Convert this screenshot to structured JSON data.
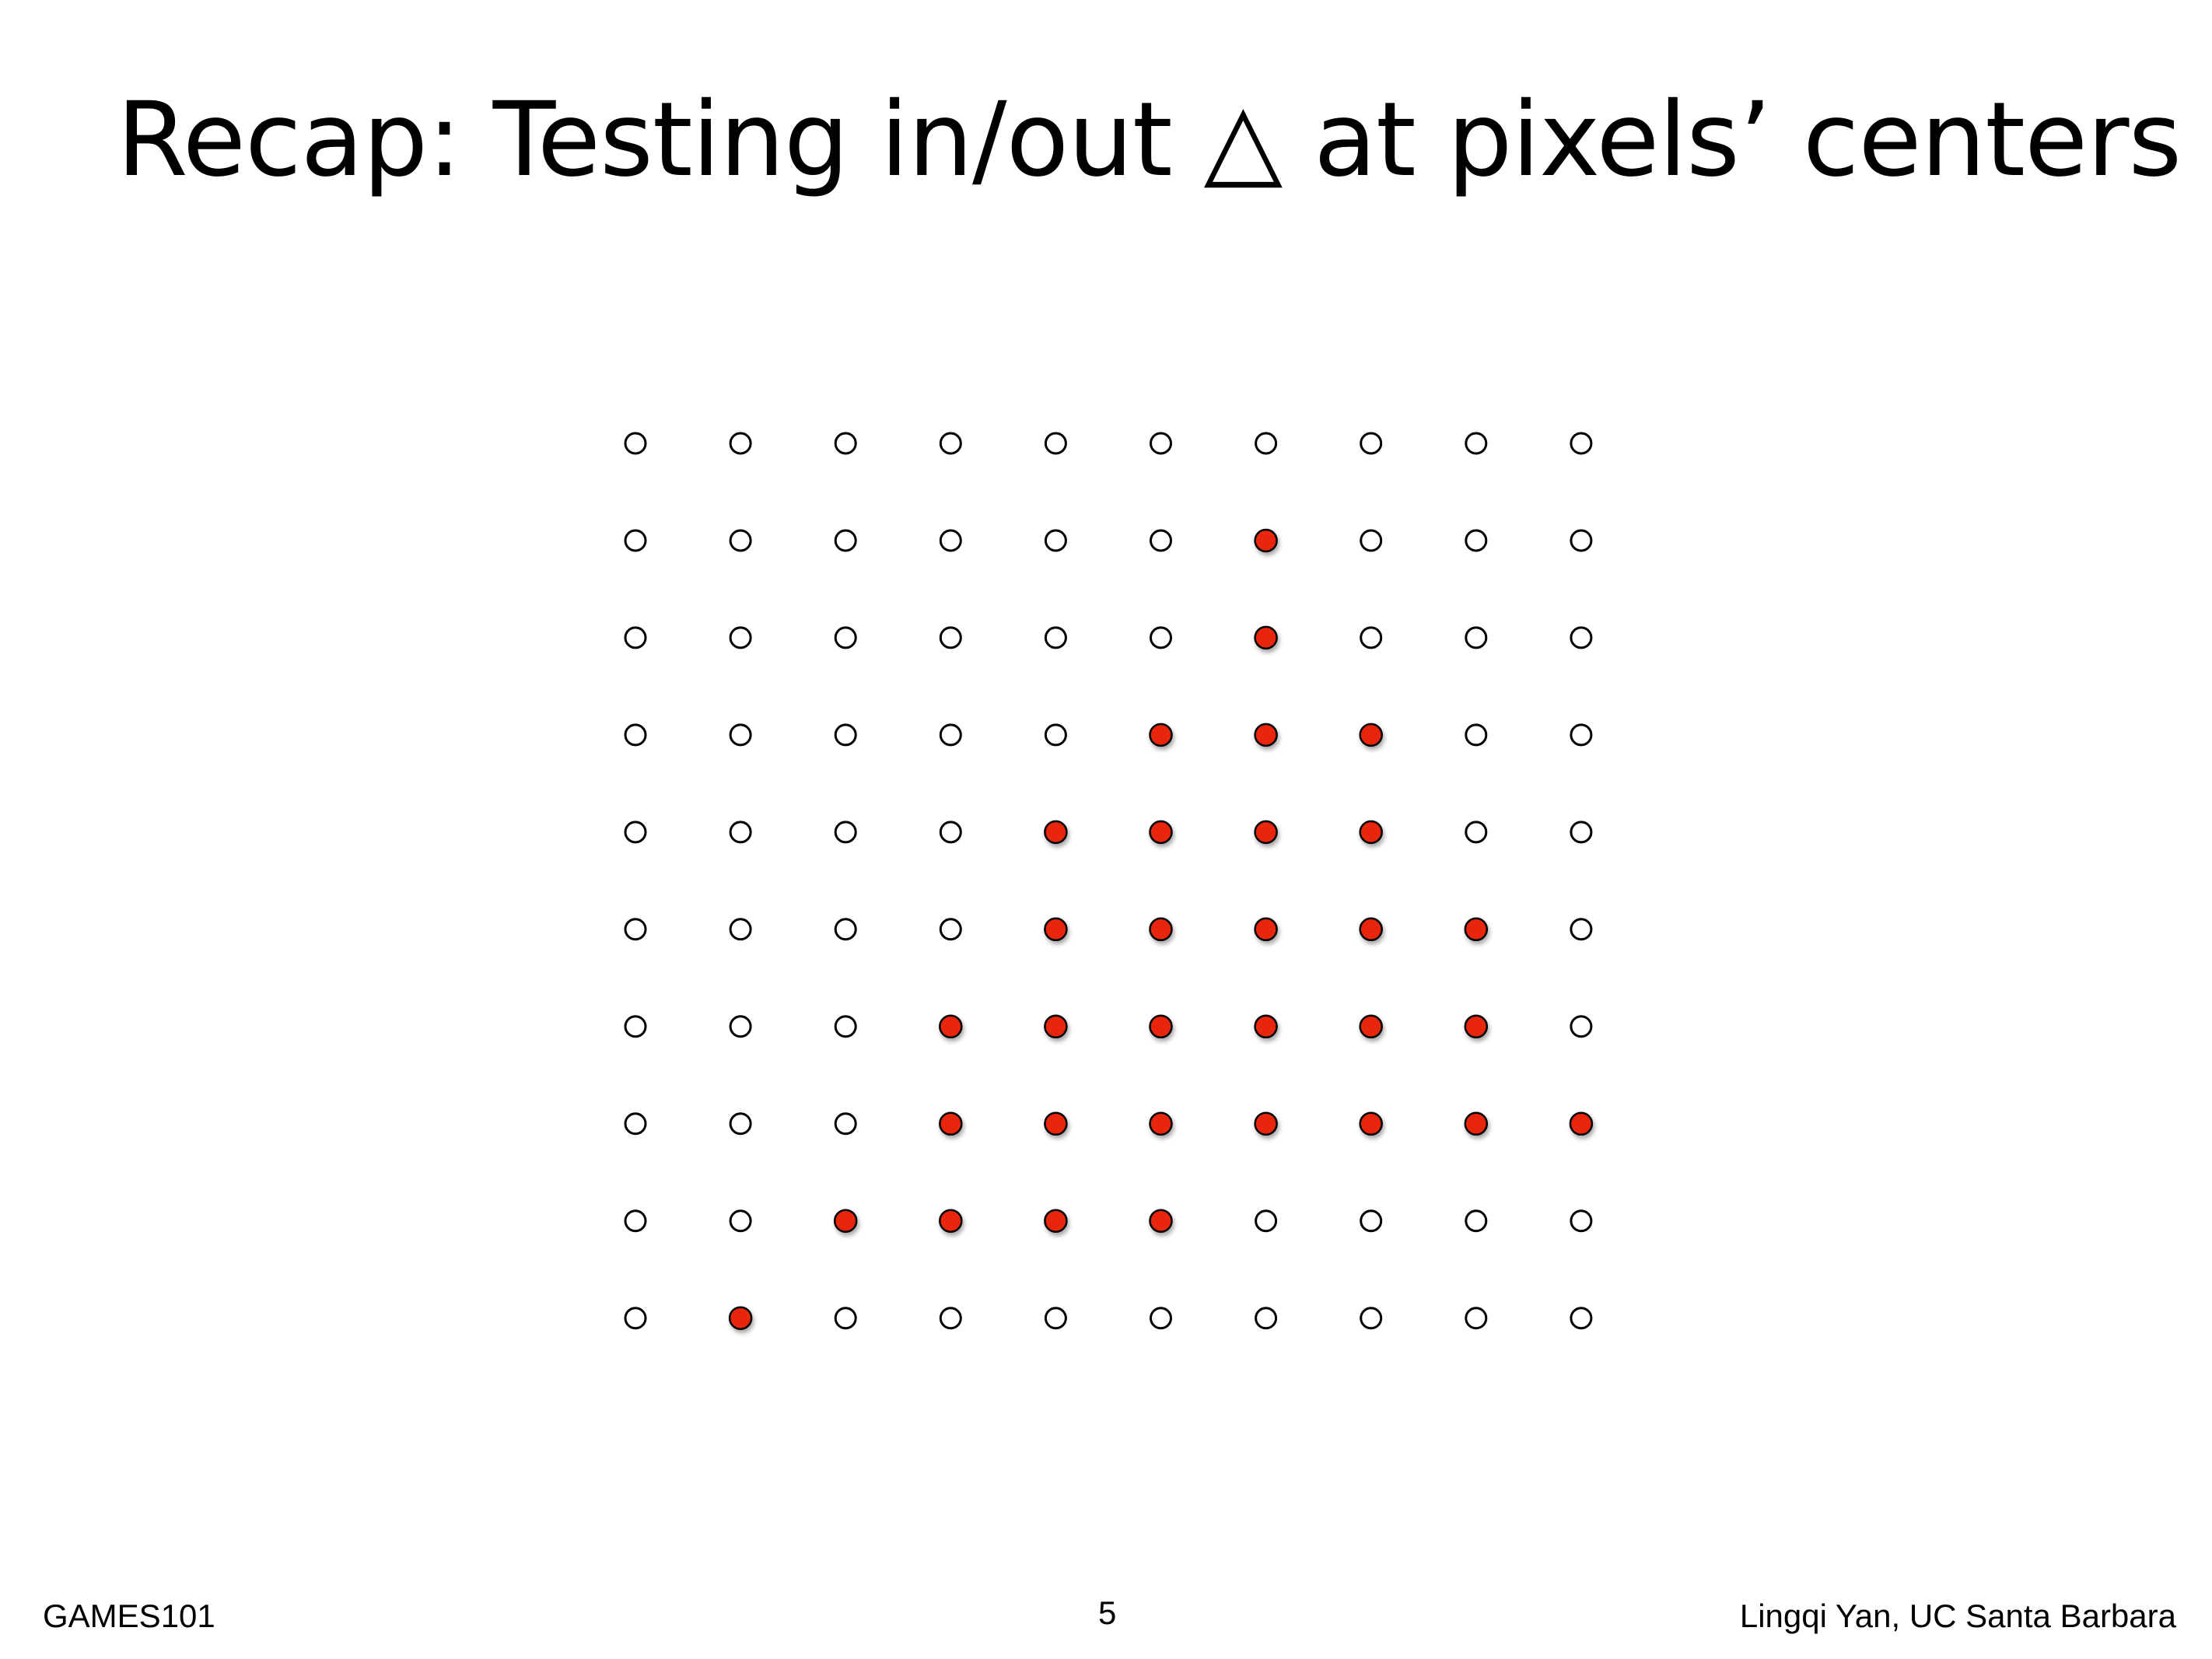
{
  "title": "Recap: Testing in/out △ at pixels’ centers",
  "footer": {
    "left": "GAMES101",
    "page_number": "5",
    "right": "Lingqi Yan, UC Santa Barbara"
  },
  "grid": {
    "rows": 10,
    "cols": 10,
    "inside_color": "#e8270b",
    "outside_color": "#ffffff",
    "samples": [
      [
        0,
        0,
        0,
        0,
        0,
        0,
        0,
        0,
        0,
        0
      ],
      [
        0,
        0,
        0,
        0,
        0,
        0,
        1,
        0,
        0,
        0
      ],
      [
        0,
        0,
        0,
        0,
        0,
        0,
        1,
        0,
        0,
        0
      ],
      [
        0,
        0,
        0,
        0,
        0,
        1,
        1,
        1,
        0,
        0
      ],
      [
        0,
        0,
        0,
        0,
        1,
        1,
        1,
        1,
        0,
        0
      ],
      [
        0,
        0,
        0,
        0,
        1,
        1,
        1,
        1,
        1,
        0
      ],
      [
        0,
        0,
        0,
        1,
        1,
        1,
        1,
        1,
        1,
        0
      ],
      [
        0,
        0,
        0,
        1,
        1,
        1,
        1,
        1,
        1,
        1
      ],
      [
        0,
        0,
        1,
        1,
        1,
        1,
        0,
        0,
        0,
        0
      ],
      [
        0,
        1,
        0,
        0,
        0,
        0,
        0,
        0,
        0,
        0
      ]
    ]
  }
}
